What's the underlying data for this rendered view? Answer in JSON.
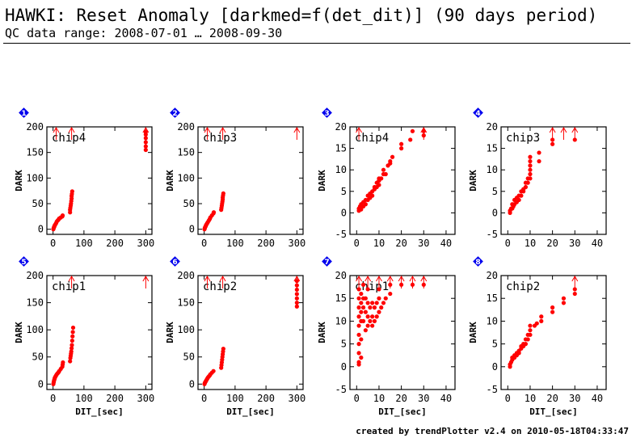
{
  "title": "HAWKI: Reset Anomaly [darkmed=f(det_dit)] (90 days period)",
  "subtitle": "QC data range: 2008-07-01 … 2008-09-30",
  "footer": "created by trendPlotter v2.4 on 2010-05-18T04:33:47",
  "colors": {
    "points": "#ff0000",
    "badge": "#0000ee",
    "axis": "#000000"
  },
  "chart_data": [
    {
      "type": "scatter",
      "id": "1",
      "label": "chip4",
      "xlabel": "",
      "ylabel": "DARK",
      "xlim": [
        -20,
        320
      ],
      "ylim": [
        -10,
        200
      ],
      "xticks": [
        0,
        100,
        200,
        300
      ],
      "yticks": [
        0,
        50,
        100,
        150,
        200
      ],
      "points": [
        [
          1,
          0
        ],
        [
          2,
          2
        ],
        [
          3,
          4
        ],
        [
          4,
          5
        ],
        [
          5,
          7
        ],
        [
          6,
          8
        ],
        [
          8,
          10
        ],
        [
          10,
          12
        ],
        [
          12,
          15
        ],
        [
          15,
          17
        ],
        [
          18,
          19
        ],
        [
          20,
          21
        ],
        [
          25,
          23
        ],
        [
          30,
          25
        ],
        [
          31,
          27
        ],
        [
          55,
          33
        ],
        [
          55,
          38
        ],
        [
          56,
          42
        ],
        [
          57,
          46
        ],
        [
          58,
          50
        ],
        [
          59,
          55
        ],
        [
          60,
          60
        ],
        [
          60,
          65
        ],
        [
          61,
          69
        ],
        [
          62,
          74
        ],
        [
          300,
          190
        ],
        [
          300,
          185
        ],
        [
          300,
          178
        ],
        [
          300,
          170
        ],
        [
          300,
          162
        ],
        [
          300,
          155
        ]
      ],
      "clipped_x": [
        10,
        60,
        300
      ]
    },
    {
      "type": "scatter",
      "id": "2",
      "label": "chip3",
      "xlabel": "",
      "ylabel": "DARK",
      "xlim": [
        -20,
        320
      ],
      "ylim": [
        -10,
        200
      ],
      "xticks": [
        0,
        100,
        200,
        300
      ],
      "yticks": [
        0,
        50,
        100,
        150,
        200
      ],
      "points": [
        [
          1,
          0
        ],
        [
          2,
          2
        ],
        [
          3,
          4
        ],
        [
          5,
          6
        ],
        [
          6,
          8
        ],
        [
          8,
          10
        ],
        [
          10,
          12
        ],
        [
          12,
          14
        ],
        [
          15,
          17
        ],
        [
          18,
          20
        ],
        [
          20,
          23
        ],
        [
          25,
          27
        ],
        [
          30,
          31
        ],
        [
          31,
          33
        ],
        [
          55,
          38
        ],
        [
          56,
          42
        ],
        [
          57,
          46
        ],
        [
          58,
          50
        ],
        [
          59,
          54
        ],
        [
          60,
          58
        ],
        [
          60,
          62
        ],
        [
          61,
          66
        ],
        [
          62,
          70
        ]
      ],
      "clipped_x": [
        10,
        60,
        300
      ]
    },
    {
      "type": "scatter",
      "id": "3",
      "label": "chip4",
      "xlabel": "",
      "ylabel": "DARK",
      "xlim": [
        -3,
        44
      ],
      "ylim": [
        -5,
        20
      ],
      "xticks": [
        0,
        10,
        20,
        30,
        40
      ],
      "yticks": [
        -5,
        0,
        5,
        10,
        15,
        20
      ],
      "points": [
        [
          1,
          0.5
        ],
        [
          1,
          1
        ],
        [
          1.5,
          1.5
        ],
        [
          2,
          2
        ],
        [
          2,
          0.8
        ],
        [
          3,
          1.5
        ],
        [
          3,
          2.5
        ],
        [
          4,
          2
        ],
        [
          4,
          3
        ],
        [
          5,
          3
        ],
        [
          5,
          4
        ],
        [
          6,
          3.5
        ],
        [
          6,
          4.5
        ],
        [
          7,
          5
        ],
        [
          7,
          4
        ],
        [
          8,
          5.5
        ],
        [
          8,
          6
        ],
        [
          9,
          6
        ],
        [
          9,
          7
        ],
        [
          10,
          6.5
        ],
        [
          10,
          7.5
        ],
        [
          10,
          8
        ],
        [
          11,
          8
        ],
        [
          12,
          9
        ],
        [
          12,
          10
        ],
        [
          13,
          9
        ],
        [
          14,
          11
        ],
        [
          15,
          11.5
        ],
        [
          15,
          12
        ],
        [
          16,
          13
        ],
        [
          20,
          15
        ],
        [
          20,
          16
        ],
        [
          24,
          17
        ],
        [
          25,
          19
        ],
        [
          30,
          18
        ],
        [
          30,
          19
        ]
      ],
      "clipped_x": [
        1,
        30
      ]
    },
    {
      "type": "scatter",
      "id": "4",
      "label": "chip3",
      "xlabel": "",
      "ylabel": "DARK",
      "xlim": [
        -3,
        44
      ],
      "ylim": [
        -5,
        20
      ],
      "xticks": [
        0,
        10,
        20,
        30,
        40
      ],
      "yticks": [
        -5,
        0,
        5,
        10,
        15,
        20
      ],
      "points": [
        [
          1,
          0
        ],
        [
          1,
          0.5
        ],
        [
          1.5,
          1
        ],
        [
          2,
          1
        ],
        [
          2,
          2
        ],
        [
          2.5,
          1.5
        ],
        [
          3,
          2
        ],
        [
          3,
          3
        ],
        [
          4,
          2.5
        ],
        [
          4,
          3.5
        ],
        [
          5,
          3
        ],
        [
          5,
          4
        ],
        [
          6,
          4
        ],
        [
          6,
          5
        ],
        [
          7,
          5
        ],
        [
          7,
          5.5
        ],
        [
          8,
          6
        ],
        [
          8,
          7
        ],
        [
          9,
          7
        ],
        [
          9,
          8
        ],
        [
          10,
          8
        ],
        [
          10,
          9
        ],
        [
          10,
          10
        ],
        [
          10,
          11
        ],
        [
          10,
          12
        ],
        [
          10,
          13
        ],
        [
          14,
          14
        ],
        [
          14,
          12
        ],
        [
          20,
          17
        ],
        [
          20,
          16
        ],
        [
          30,
          17
        ]
      ],
      "clipped_x": [
        20,
        25,
        30
      ]
    },
    {
      "type": "scatter",
      "id": "5",
      "label": "chip1",
      "xlabel": "DIT_[sec]",
      "ylabel": "DARK",
      "xlim": [
        -20,
        320
      ],
      "ylim": [
        -10,
        200
      ],
      "xticks": [
        0,
        100,
        200,
        300
      ],
      "yticks": [
        0,
        50,
        100,
        150,
        200
      ],
      "points": [
        [
          1,
          0
        ],
        [
          2,
          3
        ],
        [
          3,
          6
        ],
        [
          4,
          8
        ],
        [
          5,
          10
        ],
        [
          6,
          12
        ],
        [
          8,
          14
        ],
        [
          10,
          16
        ],
        [
          12,
          18
        ],
        [
          15,
          20
        ],
        [
          18,
          22
        ],
        [
          20,
          24
        ],
        [
          25,
          28
        ],
        [
          30,
          32
        ],
        [
          31,
          36
        ],
        [
          32,
          40
        ],
        [
          55,
          42
        ],
        [
          56,
          48
        ],
        [
          57,
          52
        ],
        [
          58,
          56
        ],
        [
          59,
          60
        ],
        [
          60,
          66
        ],
        [
          61,
          72
        ],
        [
          62,
          80
        ],
        [
          63,
          88
        ],
        [
          64,
          96
        ],
        [
          65,
          104
        ]
      ],
      "clipped_x": [
        60,
        300
      ]
    },
    {
      "type": "scatter",
      "id": "6",
      "label": "chip2",
      "xlabel": "DIT_[sec]",
      "ylabel": "DARK",
      "xlim": [
        -20,
        320
      ],
      "ylim": [
        -10,
        200
      ],
      "xticks": [
        0,
        100,
        200,
        300
      ],
      "yticks": [
        0,
        50,
        100,
        150,
        200
      ],
      "points": [
        [
          1,
          0
        ],
        [
          2,
          2
        ],
        [
          3,
          3
        ],
        [
          5,
          5
        ],
        [
          6,
          6
        ],
        [
          8,
          8
        ],
        [
          10,
          10
        ],
        [
          12,
          12
        ],
        [
          15,
          14
        ],
        [
          18,
          16
        ],
        [
          20,
          18
        ],
        [
          25,
          21
        ],
        [
          30,
          24
        ],
        [
          55,
          30
        ],
        [
          56,
          35
        ],
        [
          57,
          40
        ],
        [
          58,
          45
        ],
        [
          59,
          50
        ],
        [
          60,
          55
        ],
        [
          61,
          60
        ],
        [
          62,
          65
        ],
        [
          300,
          190
        ],
        [
          300,
          182
        ],
        [
          300,
          174
        ],
        [
          300,
          166
        ],
        [
          300,
          158
        ],
        [
          300,
          150
        ],
        [
          300,
          143
        ]
      ],
      "clipped_x": [
        10,
        60,
        300
      ]
    },
    {
      "type": "scatter",
      "id": "7",
      "label": "chip1",
      "xlabel": "DIT_[sec]",
      "ylabel": "DARK",
      "xlim": [
        -3,
        44
      ],
      "ylim": [
        -5,
        20
      ],
      "xticks": [
        0,
        10,
        20,
        30,
        40
      ],
      "yticks": [
        -5,
        0,
        5,
        10,
        15,
        20
      ],
      "points": [
        [
          1,
          0.5
        ],
        [
          1,
          1
        ],
        [
          1,
          3
        ],
        [
          1,
          5
        ],
        [
          1,
          7
        ],
        [
          1,
          9
        ],
        [
          1,
          11
        ],
        [
          1,
          13
        ],
        [
          1,
          15
        ],
        [
          1,
          17
        ],
        [
          2,
          2
        ],
        [
          2,
          6
        ],
        [
          2,
          10
        ],
        [
          2,
          12
        ],
        [
          2,
          14
        ],
        [
          2,
          16
        ],
        [
          3,
          10
        ],
        [
          3,
          13
        ],
        [
          3,
          15
        ],
        [
          3,
          18
        ],
        [
          4,
          8
        ],
        [
          4,
          12
        ],
        [
          4,
          15
        ],
        [
          5,
          9
        ],
        [
          5,
          11
        ],
        [
          5,
          14
        ],
        [
          5,
          17
        ],
        [
          6,
          10
        ],
        [
          6,
          13
        ],
        [
          7,
          9
        ],
        [
          7,
          11
        ],
        [
          7,
          14
        ],
        [
          8,
          10
        ],
        [
          8,
          13
        ],
        [
          9,
          11
        ],
        [
          9,
          14
        ],
        [
          10,
          12
        ],
        [
          10,
          15
        ],
        [
          10,
          17
        ],
        [
          11,
          13
        ],
        [
          12,
          14
        ],
        [
          13,
          15
        ],
        [
          15,
          16
        ],
        [
          15,
          18
        ],
        [
          20,
          18
        ],
        [
          25,
          18
        ],
        [
          30,
          18
        ]
      ],
      "clipped_x": [
        1,
        5,
        10,
        15,
        20,
        25,
        30
      ]
    },
    {
      "type": "scatter",
      "id": "8",
      "label": "chip2",
      "xlabel": "DIT_[sec]",
      "ylabel": "DARK",
      "xlim": [
        -3,
        44
      ],
      "ylim": [
        -5,
        20
      ],
      "xticks": [
        0,
        10,
        20,
        30,
        40
      ],
      "yticks": [
        -5,
        0,
        5,
        10,
        15,
        20
      ],
      "points": [
        [
          1,
          0
        ],
        [
          1,
          0.5
        ],
        [
          1.5,
          1
        ],
        [
          2,
          1.5
        ],
        [
          2,
          2
        ],
        [
          3,
          2
        ],
        [
          3,
          2.5
        ],
        [
          4,
          2.5
        ],
        [
          4,
          3
        ],
        [
          5,
          3
        ],
        [
          5,
          3.5
        ],
        [
          6,
          4
        ],
        [
          6,
          4.5
        ],
        [
          7,
          4.5
        ],
        [
          7,
          5
        ],
        [
          8,
          5
        ],
        [
          8,
          6
        ],
        [
          9,
          6
        ],
        [
          9,
          7
        ],
        [
          10,
          7
        ],
        [
          10,
          8
        ],
        [
          10,
          9
        ],
        [
          12,
          9
        ],
        [
          13,
          9.5
        ],
        [
          15,
          10
        ],
        [
          15,
          11
        ],
        [
          20,
          12
        ],
        [
          20,
          13
        ],
        [
          25,
          14
        ],
        [
          25,
          15
        ],
        [
          30,
          16
        ],
        [
          30,
          17
        ]
      ],
      "clipped_x": [
        30
      ]
    }
  ]
}
